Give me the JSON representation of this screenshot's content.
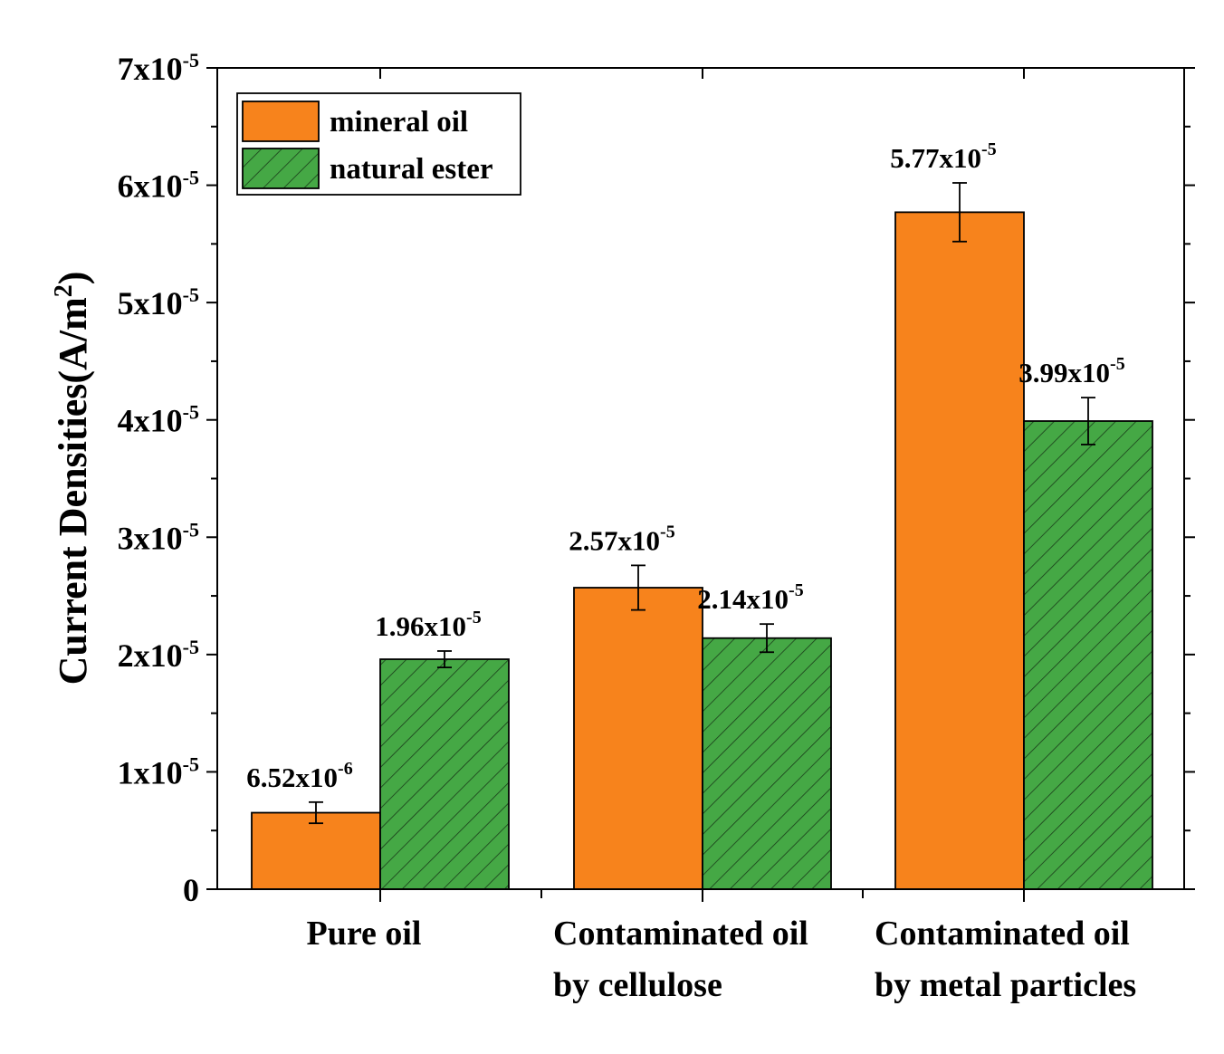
{
  "chart_data": {
    "type": "bar",
    "title": "",
    "xlabel": "",
    "ylabel": {
      "text": "Current Densities(A/m",
      "sup": "2",
      "close": ")"
    },
    "ylim": [
      0,
      7e-05
    ],
    "y_ticks": [
      {
        "value": 0,
        "base": "0",
        "exp": ""
      },
      {
        "value": 1e-05,
        "base": "1x10",
        "exp": "-5"
      },
      {
        "value": 2e-05,
        "base": "2x10",
        "exp": "-5"
      },
      {
        "value": 3e-05,
        "base": "3x10",
        "exp": "-5"
      },
      {
        "value": 4e-05,
        "base": "4x10",
        "exp": "-5"
      },
      {
        "value": 5e-05,
        "base": "5x10",
        "exp": "-5"
      },
      {
        "value": 6e-05,
        "base": "6x10",
        "exp": "-5"
      },
      {
        "value": 7e-05,
        "base": "7x10",
        "exp": "-5"
      }
    ],
    "categories": [
      {
        "lines": [
          "Pure oil"
        ]
      },
      {
        "lines": [
          "Contaminated oil",
          "by cellulose"
        ]
      },
      {
        "lines": [
          "Contaminated oil",
          "by metal particles"
        ]
      }
    ],
    "series": [
      {
        "name": "mineral oil",
        "color": "#f7831c",
        "pattern": "solid",
        "values": [
          6.52e-06,
          2.57e-05,
          5.77e-05
        ],
        "errors": [
          9e-07,
          1.9e-06,
          2.5e-06
        ],
        "labels": [
          {
            "base": "6.52x10",
            "exp": "-6"
          },
          {
            "base": "2.57x10",
            "exp": "-5"
          },
          {
            "base": "5.77x10",
            "exp": "-5"
          }
        ]
      },
      {
        "name": "natural ester",
        "color": "#45a845",
        "pattern": "hatch",
        "values": [
          1.96e-05,
          2.14e-05,
          3.99e-05
        ],
        "errors": [
          7e-07,
          1.2e-06,
          2e-06
        ],
        "labels": [
          {
            "base": "1.96x10",
            "exp": "-5"
          },
          {
            "base": "2.14x10",
            "exp": "-5"
          },
          {
            "base": "3.99x10",
            "exp": "-5"
          }
        ]
      }
    ],
    "legend_position": "top-left"
  }
}
